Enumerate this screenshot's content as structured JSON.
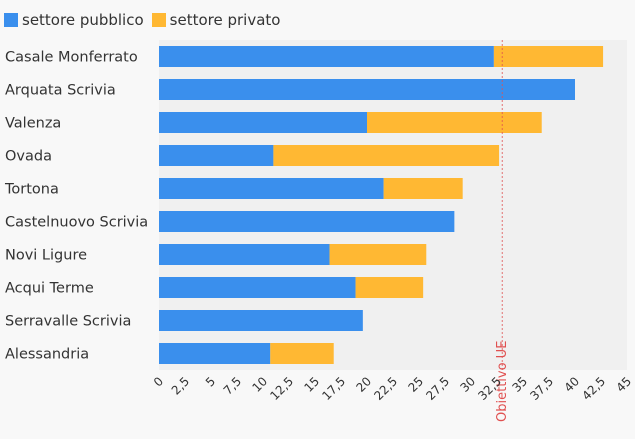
{
  "chart_data": {
    "type": "bar",
    "orientation": "horizontal",
    "stacked": true,
    "categories": [
      "Casale Monferrato",
      "Arquata Scrivia",
      "Valenza",
      "Ovada",
      "Tortona",
      "Castelnuovo Scrivia",
      "Novi Ligure",
      "Acqui Terme",
      "Serravalle Scrivia",
      "Alessandria"
    ],
    "series": [
      {
        "name": "settore pubblico",
        "color": "#3a8fed",
        "values": [
          32.2,
          40.0,
          20.0,
          11.0,
          21.6,
          28.4,
          16.4,
          18.9,
          19.6,
          10.7
        ]
      },
      {
        "name": "settore privato",
        "color": "#ffb833",
        "values": [
          10.5,
          0,
          16.8,
          21.7,
          7.6,
          0,
          9.3,
          6.5,
          0,
          6.1
        ]
      }
    ],
    "xlim": [
      0,
      45
    ],
    "xticks": [
      "0",
      "2,5",
      "5",
      "7,5",
      "10",
      "12,5",
      "15",
      "17,5",
      "20",
      "22,5",
      "25",
      "27,5",
      "30",
      "32,5",
      "35",
      "37,5",
      "40",
      "42,5",
      "45"
    ],
    "legend_position": "top-left",
    "target_line": {
      "value": 33,
      "label": "Obiettivo UE",
      "color": "#e05050"
    }
  }
}
